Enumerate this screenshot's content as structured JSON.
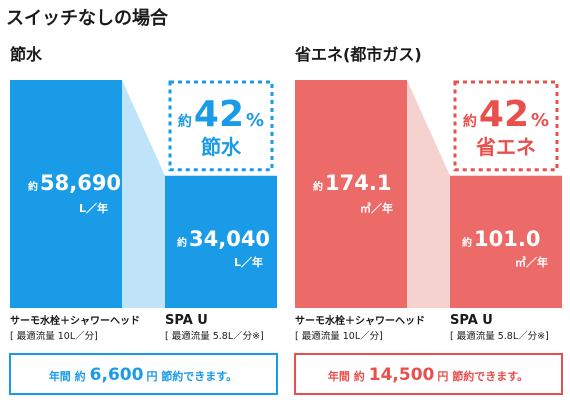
{
  "page_title": "スイッチなしの場合",
  "colors": {
    "water_bar": "#1a9be8",
    "water_connector": "#bfe3f8",
    "water_text": "#1a9be8",
    "energy_bar": "#ec6a67",
    "energy_connector": "#f6d2cf",
    "energy_text": "#e8504d"
  },
  "chart_data": [
    {
      "type": "bar",
      "title": "節水",
      "categories": [
        "サーモ水栓＋シャワーヘッド",
        "SPA U"
      ],
      "category_notes": [
        "[ 最適流量 10L／分]",
        "[ 最適流量 5.8L／分※]"
      ],
      "values": [
        58690,
        34040
      ],
      "value_labels": [
        "58,690",
        "34,040"
      ],
      "value_prefix": "約",
      "unit": "L／年",
      "savings": {
        "prefix": "約",
        "number": "42",
        "percent": "%",
        "label": "節水"
      },
      "footer": {
        "before": "年間 約",
        "amount": "6,600",
        "after": "円 節約できます。"
      }
    },
    {
      "type": "bar",
      "title": "省エネ(都市ガス)",
      "categories": [
        "サーモ水栓＋シャワーヘッド",
        "SPA U"
      ],
      "category_notes": [
        "[ 最適流量 10L／分]",
        "[ 最適流量 5.8L／分※]"
      ],
      "values": [
        174.1,
        101.0
      ],
      "value_labels": [
        "174.1",
        "101.0"
      ],
      "value_prefix": "約",
      "unit": "㎥／年",
      "savings": {
        "prefix": "約",
        "number": "42",
        "percent": "%",
        "label": "省エネ"
      },
      "footer": {
        "before": "年間 約",
        "amount": "14,500",
        "after": "円 節約できます。"
      }
    }
  ]
}
